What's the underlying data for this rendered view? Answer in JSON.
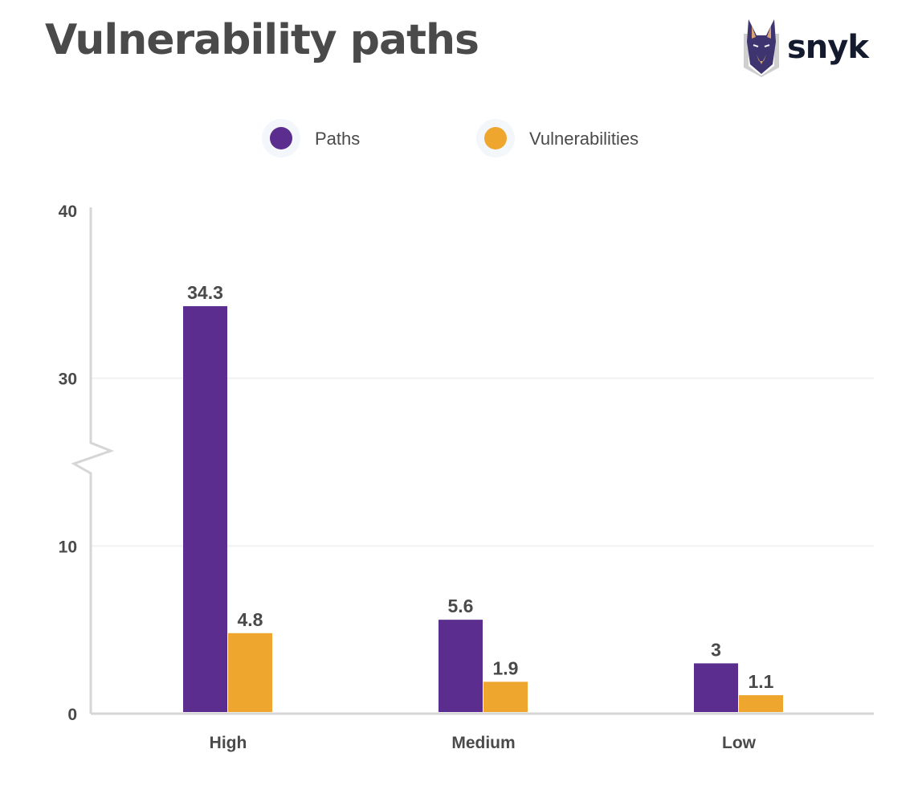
{
  "header": {
    "title": "Vulnerability paths",
    "logo_text": "snyk"
  },
  "chart_data": {
    "type": "bar",
    "title": "Vulnerability paths",
    "categories": [
      "High",
      "Medium",
      "Low"
    ],
    "series": [
      {
        "name": "Paths",
        "color": "#5b2d8e",
        "values": [
          34.3,
          5.6,
          3
        ]
      },
      {
        "name": "Vulnerabilities",
        "color": "#eea62e",
        "values": [
          4.8,
          1.9,
          1.1
        ]
      }
    ],
    "data_labels": [
      [
        "34.3",
        "5.6",
        "3"
      ],
      [
        "4.8",
        "1.9",
        "1.1"
      ]
    ],
    "yticks": [
      0,
      10,
      30,
      40
    ],
    "ytick_labels": [
      "0",
      "10",
      "30",
      "40"
    ],
    "ylim": [
      0,
      40
    ],
    "axis_break": [
      10,
      30
    ],
    "grid": true,
    "legend_placement": "top",
    "xlabel": "",
    "ylabel": ""
  }
}
